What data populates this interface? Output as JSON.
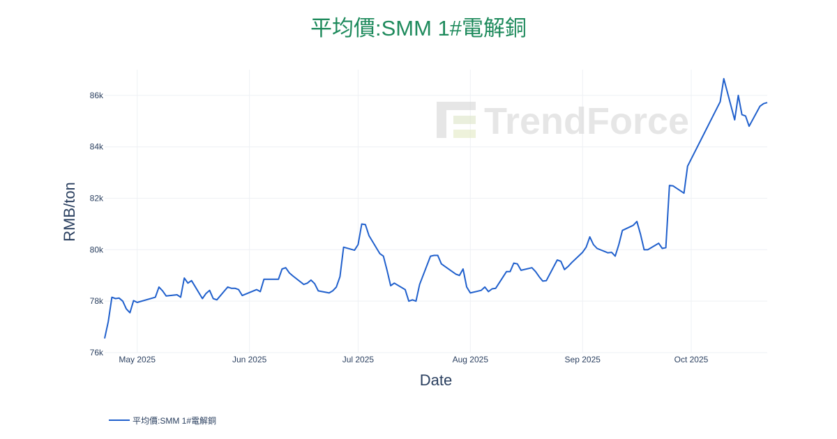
{
  "watermark": {
    "text": "TrendForce"
  },
  "chart_data": {
    "type": "line",
    "title": "平均價:SMM 1#電解銅",
    "xlabel": "Date",
    "ylabel": "RMB/ton",
    "ylim": [
      76000,
      87000
    ],
    "xlim": [
      "2025-04-22",
      "2025-10-22"
    ],
    "yticks": [
      {
        "value": 76000,
        "label": "76k"
      },
      {
        "value": 78000,
        "label": "78k"
      },
      {
        "value": 80000,
        "label": "80k"
      },
      {
        "value": 82000,
        "label": "82k"
      },
      {
        "value": 84000,
        "label": "84k"
      },
      {
        "value": 86000,
        "label": "86k"
      }
    ],
    "xticks": [
      {
        "value": "2025-05-01",
        "label": "May 2025"
      },
      {
        "value": "2025-06-01",
        "label": "Jun 2025"
      },
      {
        "value": "2025-07-01",
        "label": "Jul 2025"
      },
      {
        "value": "2025-08-01",
        "label": "Aug 2025"
      },
      {
        "value": "2025-09-01",
        "label": "Sep 2025"
      },
      {
        "value": "2025-10-01",
        "label": "Oct 2025"
      }
    ],
    "grid": true,
    "legend_position": "bottom-left",
    "series": [
      {
        "name": "平均價:SMM 1#電解銅",
        "color": "#1f5fcc",
        "x": [
          "2025-04-22",
          "2025-04-23",
          "2025-04-24",
          "2025-04-25",
          "2025-04-26",
          "2025-04-27",
          "2025-04-28",
          "2025-04-29",
          "2025-04-30",
          "2025-05-01",
          "2025-05-06",
          "2025-05-07",
          "2025-05-08",
          "2025-05-09",
          "2025-05-12",
          "2025-05-13",
          "2025-05-14",
          "2025-05-15",
          "2025-05-16",
          "2025-05-19",
          "2025-05-20",
          "2025-05-21",
          "2025-05-22",
          "2025-05-23",
          "2025-05-26",
          "2025-05-27",
          "2025-05-28",
          "2025-05-29",
          "2025-05-30",
          "2025-06-03",
          "2025-06-04",
          "2025-06-05",
          "2025-06-06",
          "2025-06-09",
          "2025-06-10",
          "2025-06-11",
          "2025-06-12",
          "2025-06-13",
          "2025-06-16",
          "2025-06-17",
          "2025-06-18",
          "2025-06-19",
          "2025-06-20",
          "2025-06-23",
          "2025-06-24",
          "2025-06-25",
          "2025-06-26",
          "2025-06-27",
          "2025-06-30",
          "2025-07-01",
          "2025-07-02",
          "2025-07-03",
          "2025-07-04",
          "2025-07-07",
          "2025-07-08",
          "2025-07-09",
          "2025-07-10",
          "2025-07-11",
          "2025-07-14",
          "2025-07-15",
          "2025-07-16",
          "2025-07-17",
          "2025-07-18",
          "2025-07-21",
          "2025-07-22",
          "2025-07-23",
          "2025-07-24",
          "2025-07-25",
          "2025-07-28",
          "2025-07-29",
          "2025-07-30",
          "2025-07-31",
          "2025-08-01",
          "2025-08-04",
          "2025-08-05",
          "2025-08-06",
          "2025-08-07",
          "2025-08-08",
          "2025-08-11",
          "2025-08-12",
          "2025-08-13",
          "2025-08-14",
          "2025-08-15",
          "2025-08-18",
          "2025-08-19",
          "2025-08-20",
          "2025-08-21",
          "2025-08-22",
          "2025-08-25",
          "2025-08-26",
          "2025-08-27",
          "2025-08-28",
          "2025-08-29",
          "2025-09-01",
          "2025-09-02",
          "2025-09-03",
          "2025-09-04",
          "2025-09-05",
          "2025-09-08",
          "2025-09-09",
          "2025-09-10",
          "2025-09-11",
          "2025-09-12",
          "2025-09-15",
          "2025-09-16",
          "2025-09-17",
          "2025-09-18",
          "2025-09-19",
          "2025-09-22",
          "2025-09-23",
          "2025-09-24",
          "2025-09-25",
          "2025-09-26",
          "2025-09-29",
          "2025-09-30",
          "2025-10-09",
          "2025-10-10",
          "2025-10-13",
          "2025-10-14",
          "2025-10-15",
          "2025-10-16",
          "2025-10-17",
          "2025-10-20",
          "2025-10-21",
          "2025-10-22"
        ],
        "values": [
          76550,
          77200,
          78150,
          78100,
          78120,
          78000,
          77700,
          77550,
          78020,
          77950,
          78150,
          78550,
          78400,
          78200,
          78250,
          78150,
          78900,
          78700,
          78800,
          78100,
          78300,
          78420,
          78100,
          78050,
          78550,
          78500,
          78500,
          78450,
          78220,
          78450,
          78370,
          78850,
          78850,
          78850,
          79250,
          79300,
          79100,
          78980,
          78650,
          78700,
          78820,
          78680,
          78400,
          78320,
          78400,
          78550,
          78950,
          80100,
          79980,
          80200,
          81000,
          80980,
          80550,
          79850,
          79750,
          79200,
          78600,
          78700,
          78450,
          78000,
          78050,
          78000,
          78650,
          79750,
          79780,
          79780,
          79450,
          79350,
          79050,
          79000,
          79250,
          78550,
          78320,
          78420,
          78550,
          78370,
          78480,
          78500,
          79150,
          79150,
          79480,
          79450,
          79200,
          79300,
          79150,
          78950,
          78780,
          78800,
          79600,
          79550,
          79230,
          79350,
          79500,
          79900,
          80100,
          80500,
          80200,
          80050,
          79880,
          79900,
          79750,
          80200,
          80750,
          80950,
          81100,
          80600,
          80000,
          80000,
          80250,
          80050,
          80080,
          82500,
          82480,
          82200,
          83250,
          85750,
          86650,
          85050,
          86000,
          85250,
          85200,
          84800,
          85580,
          85680,
          85720
        ]
      }
    ]
  }
}
